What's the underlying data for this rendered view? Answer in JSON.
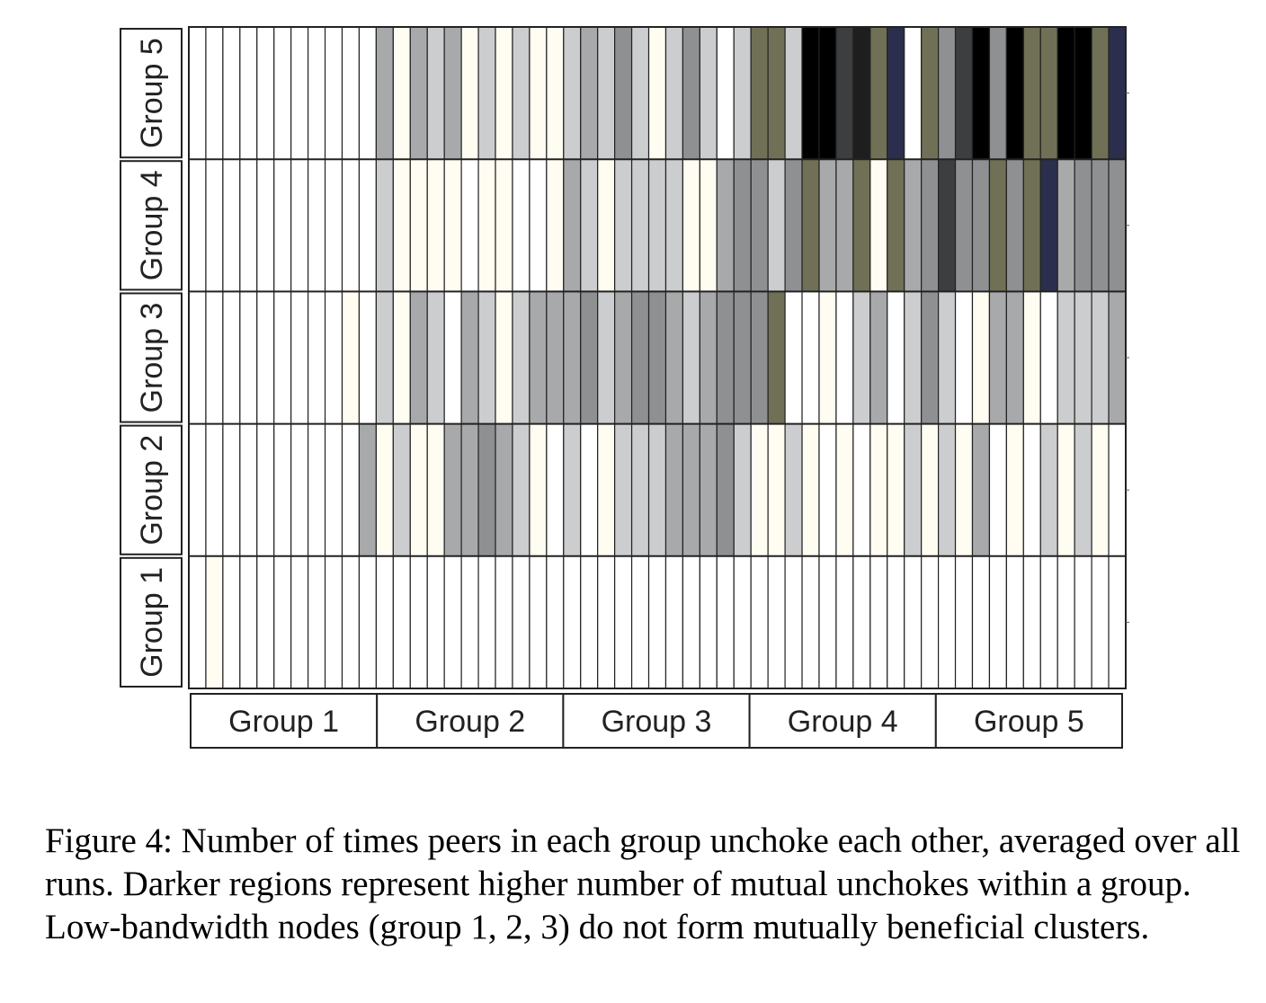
{
  "chart_data": {
    "type": "heatmap",
    "x_groups": [
      "Group 1",
      "Group 2",
      "Group 3",
      "Group 4",
      "Group 5"
    ],
    "y_groups": [
      "Group 1",
      "Group 2",
      "Group 3",
      "Group 4",
      "Group 5"
    ],
    "columns_per_group": 11,
    "legend": "Darker regions represent higher number of mutual unchokes",
    "rows": {
      "Group 5": [
        0,
        0,
        0,
        0,
        0,
        0,
        0,
        0,
        0,
        0,
        0,
        3,
        1,
        3,
        2,
        3,
        1,
        2,
        1,
        2,
        1,
        1,
        2,
        3,
        2,
        4,
        2,
        1,
        2,
        4,
        2,
        0,
        2,
        6,
        6,
        2,
        9,
        9,
        7,
        8,
        6,
        10,
        0,
        6,
        4,
        7,
        9,
        4,
        9,
        6,
        6,
        9,
        9,
        6,
        10
      ],
      "Group 4": [
        0,
        0,
        0,
        0,
        0,
        0,
        0,
        0,
        0,
        0,
        0,
        2,
        1,
        1,
        1,
        1,
        0,
        1,
        1,
        0,
        0,
        1,
        3,
        2,
        1,
        2,
        2,
        2,
        2,
        1,
        1,
        3,
        4,
        4,
        2,
        4,
        6,
        3,
        3,
        6,
        1,
        6,
        3,
        4,
        7,
        4,
        4,
        6,
        4,
        6,
        10,
        3,
        4,
        4,
        4
      ],
      "Group 3": [
        0,
        0,
        0,
        0,
        0,
        0,
        0,
        0,
        0,
        1,
        0,
        2,
        1,
        3,
        2,
        0,
        3,
        2,
        1,
        2,
        3,
        3,
        3,
        4,
        2,
        3,
        4,
        4,
        3,
        2,
        3,
        4,
        4,
        4,
        6,
        0,
        0,
        1,
        0,
        2,
        3,
        0,
        2,
        4,
        2,
        0,
        1,
        3,
        3,
        1,
        0,
        2,
        2,
        2,
        3
      ],
      "Group 2": [
        0,
        0,
        0,
        0,
        0,
        0,
        0,
        0,
        0,
        0,
        3,
        1,
        2,
        1,
        1,
        3,
        3,
        4,
        3,
        2,
        1,
        0,
        2,
        0,
        1,
        2,
        2,
        2,
        3,
        3,
        3,
        4,
        2,
        1,
        1,
        2,
        1,
        0,
        1,
        0,
        1,
        1,
        2,
        1,
        2,
        1,
        3,
        0,
        1,
        0,
        2,
        1,
        2,
        1,
        0
      ],
      "Group 1": [
        0,
        1,
        0,
        0,
        0,
        0,
        0,
        0,
        0,
        0,
        0,
        0,
        0,
        0,
        0,
        0,
        0,
        0,
        0,
        0,
        0,
        0,
        0,
        0,
        0,
        0,
        0,
        0,
        0,
        0,
        0,
        0,
        0,
        0,
        0,
        0,
        0,
        0,
        0,
        0,
        0,
        0,
        0,
        0,
        0,
        0,
        0,
        0,
        0,
        0,
        0,
        0,
        0,
        0,
        0
      ]
    },
    "color_scale": [
      "#ffffff",
      "#fffcf2",
      "#cccdce",
      "#a8a9ab",
      "#8f9092",
      "#5a5b5d",
      "#707056",
      "#3d3e40",
      "#1e1e1e",
      "#000000",
      "#2b2f4d"
    ]
  },
  "caption": "Figure 4: Number of times peers in each group unchoke each other, averaged over all runs. Darker regions represent higher number of mutual unchokes within a group. Low-bandwidth nodes (group 1, 2, 3) do not form mutually beneficial clusters."
}
